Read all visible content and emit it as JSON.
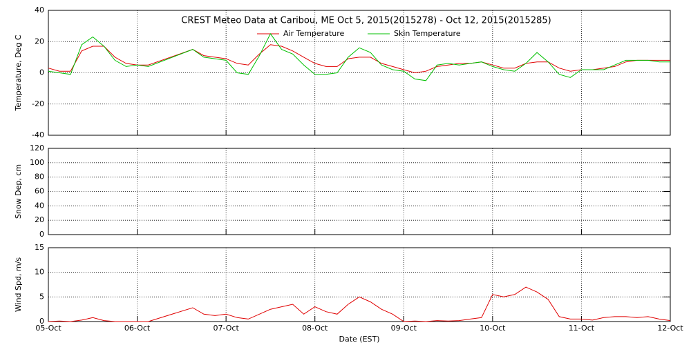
{
  "chart_data": [
    {
      "type": "line",
      "title": "CREST Meteo Data at Caribou, ME   Oct  5, 2015(2015278) - Oct 12, 2015(2015285)",
      "ylabel": "Temperature, Deg C",
      "x": [
        5.0,
        5.125,
        5.25,
        5.375,
        5.5,
        5.625,
        5.75,
        5.875,
        6.0,
        6.125,
        6.625,
        6.75,
        6.875,
        7.0,
        7.125,
        7.25,
        7.375,
        7.5,
        7.625,
        7.75,
        7.875,
        8.0,
        8.125,
        8.25,
        8.375,
        8.5,
        8.625,
        8.75,
        8.875,
        9.0,
        9.125,
        9.25,
        9.375,
        9.5,
        9.625,
        9.75,
        9.875,
        10.0,
        10.125,
        10.25,
        10.375,
        10.5,
        10.625,
        10.75,
        10.875,
        11.0,
        11.125,
        11.25,
        11.375,
        11.5,
        11.625,
        11.75,
        11.875,
        12.0
      ],
      "series": [
        {
          "name": "Air Temperature",
          "color": "#e00000",
          "values": [
            3,
            1,
            1,
            14,
            17,
            17,
            10,
            6,
            5,
            5,
            15,
            11,
            10,
            9,
            6,
            5,
            12,
            18,
            17,
            14,
            10,
            6,
            4,
            4,
            9,
            10,
            10,
            6,
            4,
            2,
            0,
            1,
            4,
            5,
            6,
            6,
            7,
            5,
            3,
            3,
            6,
            7,
            7,
            3,
            1,
            2,
            2,
            3,
            4,
            7,
            8,
            8,
            8,
            8
          ]
        },
        {
          "name": "Skin Temperature",
          "color": "#00c000",
          "values": [
            1,
            0,
            -1,
            18,
            23,
            17,
            8,
            4,
            5,
            4,
            15,
            10,
            9,
            8,
            0,
            -1,
            11,
            25,
            15,
            12,
            5,
            -1,
            -1,
            0,
            10,
            16,
            13,
            5,
            2,
            1,
            -4,
            -5,
            5,
            6,
            5,
            6,
            7,
            4,
            2,
            1,
            6,
            13,
            7,
            -1,
            -3,
            2,
            2,
            2,
            5,
            8,
            8,
            8,
            7,
            7
          ]
        }
      ],
      "xlim": [
        5,
        12
      ],
      "xticks": [
        5,
        6,
        7,
        8,
        9,
        10,
        11,
        12
      ],
      "ylim": [
        -40,
        40
      ],
      "yticks": [
        -40,
        -20,
        0,
        20,
        40
      ],
      "grid": true
    },
    {
      "type": "line",
      "ylabel": "Snow Dep, cm",
      "x": [],
      "series": [],
      "xlim": [
        5,
        12
      ],
      "xticks": [
        5,
        6,
        7,
        8,
        9,
        10,
        11,
        12
      ],
      "ylim": [
        0,
        120
      ],
      "yticks": [
        0,
        20,
        40,
        60,
        80,
        100,
        120
      ],
      "grid": true
    },
    {
      "type": "line",
      "ylabel": "Wind Spd, m/s",
      "xlabel": "Date (EST)",
      "x": [
        5.0,
        5.125,
        5.25,
        5.375,
        5.5,
        5.625,
        5.75,
        5.875,
        6.0,
        6.125,
        6.625,
        6.75,
        6.875,
        7.0,
        7.125,
        7.25,
        7.375,
        7.5,
        7.625,
        7.75,
        7.875,
        8.0,
        8.125,
        8.25,
        8.375,
        8.5,
        8.625,
        8.75,
        8.875,
        9.0,
        9.125,
        9.25,
        9.375,
        9.5,
        9.625,
        9.75,
        9.875,
        10.0,
        10.125,
        10.25,
        10.375,
        10.5,
        10.625,
        10.75,
        10.875,
        11.0,
        11.125,
        11.25,
        11.375,
        11.5,
        11.625,
        11.75,
        11.875,
        12.0
      ],
      "series": [
        {
          "color": "#e00000",
          "values": [
            0,
            0.1,
            0,
            0.3,
            0.8,
            0.2,
            0,
            0,
            0,
            0,
            2.8,
            1.5,
            1.2,
            1.5,
            0.8,
            0.5,
            1.5,
            2.5,
            3,
            3.5,
            1.5,
            3,
            2,
            1.5,
            3.5,
            5,
            4,
            2.5,
            1.5,
            0,
            0.1,
            0,
            0.2,
            0.1,
            0.2,
            0.5,
            0.8,
            5.5,
            5,
            5.5,
            7,
            6,
            4.5,
            1,
            0.5,
            0.5,
            0.3,
            0.8,
            1,
            1,
            0.8,
            1,
            0.5,
            0.2
          ]
        }
      ],
      "xlim": [
        5,
        12
      ],
      "xticks": [
        {
          "value": 5,
          "label": "05-Oct"
        },
        {
          "value": 6,
          "label": "06-Oct"
        },
        {
          "value": 7,
          "label": "07-Oct"
        },
        {
          "value": 8,
          "label": "08-Oct"
        },
        {
          "value": 9,
          "label": "09-Oct"
        },
        {
          "value": 10,
          "label": "10-Oct"
        },
        {
          "value": 11,
          "label": "11-Oct"
        },
        {
          "value": 12,
          "label": "12-Oct"
        }
      ],
      "ylim": [
        0,
        15
      ],
      "yticks": [
        0,
        5,
        10,
        15
      ],
      "grid": true
    }
  ]
}
